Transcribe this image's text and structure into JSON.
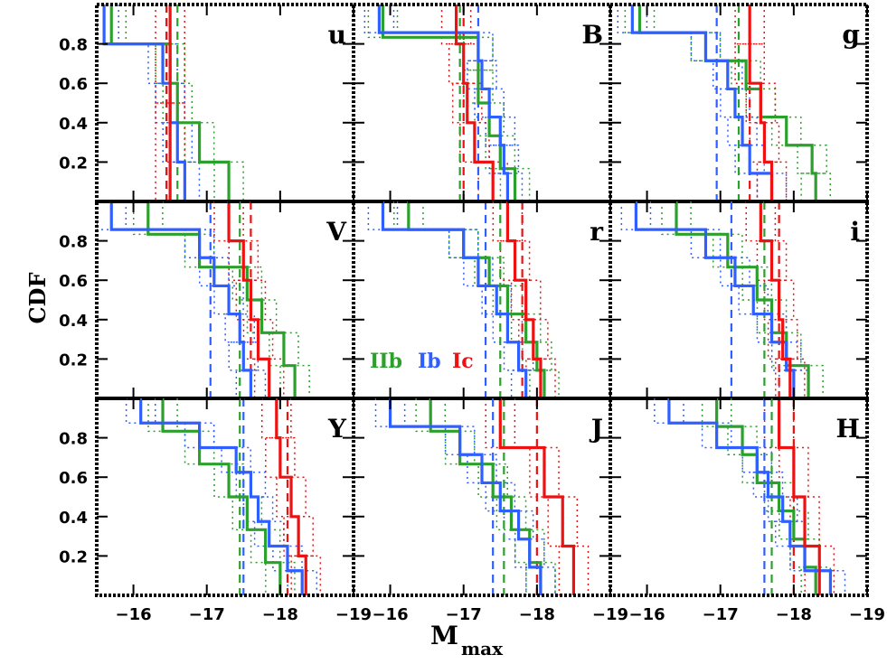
{
  "chart_data": {
    "type": "step",
    "title": "",
    "xlabel": "M",
    "xlabel_sub": "max",
    "ylabel": "CDF",
    "xlim": [
      -15.5,
      -19
    ],
    "ylim": [
      0,
      1
    ],
    "xticks": [
      -16,
      -17,
      -18,
      -19
    ],
    "xtick_labels": [
      "−16",
      "−17",
      "−18",
      "−19"
    ],
    "yticks": [
      0.2,
      0.4,
      0.6,
      0.8
    ],
    "ytick_labels": [
      "0.2",
      "0.4",
      "0.6",
      "0.8"
    ],
    "colors": {
      "IIb": "#2ca02c",
      "Ib": "#2f5fff",
      "Ic": "#ee1111"
    },
    "legend": {
      "placement": "panel r, lower-left",
      "entries": [
        "IIb",
        "Ib",
        "Ic"
      ]
    },
    "panels": [
      {
        "label": "u",
        "medians": {
          "IIb": -16.6,
          "Ib": -16.45,
          "Ic": -16.45
        },
        "series": [
          {
            "name": "IIb",
            "x": [
              -15.7,
              -16.5,
              -16.6,
              -16.9,
              -17.3
            ]
          },
          {
            "name": "Ib",
            "x": [
              -15.6,
              -16.4,
              -16.5,
              -16.6,
              -16.7
            ]
          },
          {
            "name": "Ic",
            "x": [
              -16.5,
              -16.5
            ]
          }
        ]
      },
      {
        "label": "B",
        "medians": {
          "IIb": -16.95,
          "Ib": -17.2,
          "Ic": -17.0
        },
        "series": [
          {
            "name": "IIb",
            "x": [
              -15.9,
              -17.2,
              -17.2,
              -17.35,
              -17.5,
              -17.7
            ]
          },
          {
            "name": "Ib",
            "x": [
              -15.85,
              -17.2,
              -17.25,
              -17.35,
              -17.5,
              -17.55,
              -17.6
            ]
          },
          {
            "name": "Ic",
            "x": [
              -16.9,
              -17.0,
              -17.05,
              -17.15,
              -17.4
            ]
          }
        ]
      },
      {
        "label": "g",
        "medians": {
          "IIb": -17.25,
          "Ib": -16.95,
          "Ic": -17.4
        },
        "series": [
          {
            "name": "IIb",
            "x": [
              -15.9,
              -16.8,
              -17.35,
              -17.55,
              -17.9,
              -18.25,
              -18.3
            ]
          },
          {
            "name": "Ib",
            "x": [
              -15.8,
              -16.8,
              -17.1,
              -17.2,
              -17.3,
              -17.4,
              -17.7
            ]
          },
          {
            "name": "Ic",
            "x": [
              -17.4,
              -17.4,
              -17.55,
              -17.6,
              -17.7
            ]
          }
        ]
      },
      {
        "label": "V",
        "medians": {
          "IIb": -17.45,
          "Ib": -17.05,
          "Ic": -17.6
        },
        "series": [
          {
            "name": "IIb",
            "x": [
              -16.2,
              -16.9,
              -17.55,
              -17.75,
              -18.05,
              -18.2
            ]
          },
          {
            "name": "Ib",
            "x": [
              -15.7,
              -16.9,
              -17.1,
              -17.3,
              -17.45,
              -17.5,
              -17.6
            ]
          },
          {
            "name": "Ic",
            "x": [
              -17.3,
              -17.5,
              -17.6,
              -17.7,
              -17.85
            ]
          }
        ]
      },
      {
        "label": "r",
        "medians": {
          "IIb": -17.5,
          "Ib": -17.3,
          "Ic": -17.8
        },
        "series": [
          {
            "name": "IIb",
            "x": [
              -16.25,
              -17.0,
              -17.35,
              -17.6,
              -17.85,
              -18.0,
              -18.1
            ]
          },
          {
            "name": "Ib",
            "x": [
              -15.9,
              -17.0,
              -17.2,
              -17.45,
              -17.6,
              -17.75,
              -17.85
            ]
          },
          {
            "name": "Ic",
            "x": [
              -17.6,
              -17.7,
              -17.85,
              -17.95,
              -18.05
            ]
          }
        ]
      },
      {
        "label": "i",
        "medians": {
          "IIb": -17.6,
          "Ib": -17.15,
          "Ic": -17.8
        },
        "series": [
          {
            "name": "IIb",
            "x": [
              -16.4,
              -17.1,
              -17.5,
              -17.7,
              -17.9,
              -18.2
            ]
          },
          {
            "name": "Ib",
            "x": [
              -15.85,
              -16.8,
              -17.2,
              -17.45,
              -17.7,
              -17.9,
              -18.0
            ]
          },
          {
            "name": "Ic",
            "x": [
              -17.55,
              -17.7,
              -17.8,
              -17.85,
              -17.95
            ]
          }
        ]
      },
      {
        "label": "Y",
        "medians": {
          "IIb": -17.45,
          "Ib": -17.5,
          "Ic": -18.1
        },
        "series": [
          {
            "name": "IIb",
            "x": [
              -16.4,
              -16.9,
              -17.3,
              -17.55,
              -17.8,
              -18.0
            ]
          },
          {
            "name": "Ib",
            "x": [
              -16.1,
              -16.9,
              -17.4,
              -17.6,
              -17.7,
              -17.85,
              -18.1,
              -18.3
            ]
          },
          {
            "name": "Ic",
            "x": [
              -17.95,
              -18.0,
              -18.15,
              -18.25,
              -18.35
            ]
          }
        ]
      },
      {
        "label": "J",
        "medians": {
          "IIb": -17.55,
          "Ib": -17.4,
          "Ic": -18.0
        },
        "series": [
          {
            "name": "IIb",
            "x": [
              -16.55,
              -16.95,
              -17.4,
              -17.65,
              -17.9,
              -18.05
            ]
          },
          {
            "name": "Ib",
            "x": [
              -16.0,
              -16.95,
              -17.25,
              -17.5,
              -17.75,
              -17.9,
              -18.05
            ]
          },
          {
            "name": "Ic",
            "x": [
              -17.5,
              -18.1,
              -18.35,
              -18.5
            ]
          }
        ]
      },
      {
        "label": "H",
        "medians": {
          "IIb": -17.7,
          "Ib": -17.6,
          "Ic": -18.0
        },
        "series": [
          {
            "name": "IIb",
            "x": [
              -16.95,
              -17.3,
              -17.5,
              -17.8,
              -18.0,
              -18.15,
              -18.3
            ]
          },
          {
            "name": "Ib",
            "x": [
              -16.3,
              -16.95,
              -17.5,
              -17.65,
              -17.85,
              -17.95,
              -18.15,
              -18.5
            ]
          },
          {
            "name": "Ic",
            "x": [
              -17.8,
              -18.0,
              -18.15,
              -18.35
            ]
          }
        ]
      }
    ]
  }
}
